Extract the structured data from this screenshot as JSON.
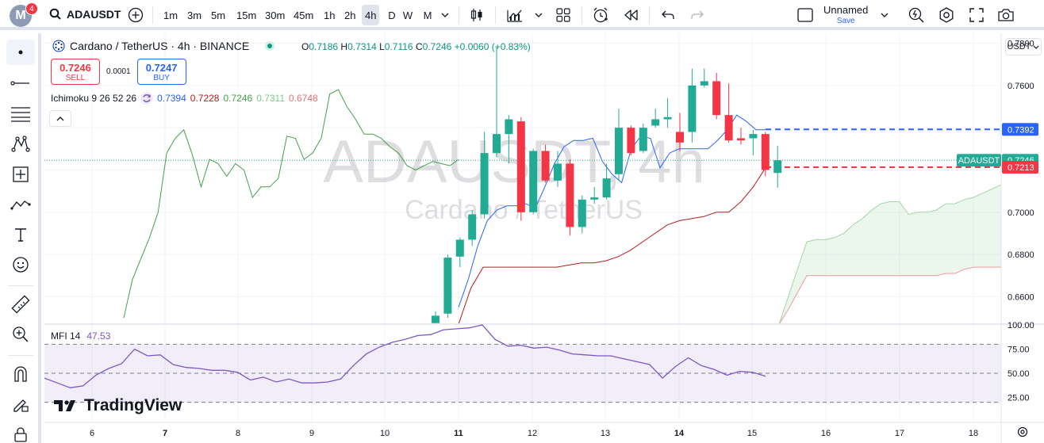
{
  "topbar": {
    "avatar_letter": "M",
    "notification_count": "4",
    "symbol": "ADAUSDT",
    "timeframes": [
      "1m",
      "3m",
      "5m",
      "15m",
      "30m",
      "45m",
      "1h",
      "2h",
      "4h",
      "D",
      "W",
      "M"
    ],
    "active_timeframe": "4h",
    "layout_name": "Unnamed",
    "save_label": "Save"
  },
  "legend": {
    "title": "Cardano / TetherUS · 4h · BINANCE",
    "open_label": "O",
    "open": "0.7186",
    "high_label": "H",
    "high": "0.7314",
    "low_label": "L",
    "low": "0.7116",
    "close_label": "C",
    "close": "0.7246",
    "change": "+0.0060 (+0.83%)"
  },
  "trade": {
    "sell_price": "0.7246",
    "sell_label": "SELL",
    "spread": "0.0001",
    "buy_price": "0.7247",
    "buy_label": "BUY"
  },
  "ichimoku": {
    "label": "Ichimoku 9 26 52 26",
    "v1": "0.7394",
    "v2": "0.7228",
    "v3": "0.7246",
    "v4": "0.7311",
    "v5": "0.6748"
  },
  "mfi": {
    "label": "MFI 14",
    "value": "47.53"
  },
  "currency": "USDT",
  "watermark": {
    "symbol": "ADAUSDT, 4h",
    "name": "Cardano / TetherUS"
  },
  "logo_text": "TradingView",
  "colors": {
    "up": "#22ab94",
    "down": "#f23645",
    "conversion": "#2962ff",
    "base": "#b71c1c",
    "lagging": "#43a047",
    "cloud": "#a5d6a7",
    "mfi": "#7e57c2"
  },
  "chart_data": {
    "type": "candlestick",
    "price_axis": {
      "ticks": [
        "0.7800",
        "0.7600",
        "0.7400",
        "0.7200",
        "0.7000",
        "0.6800",
        "0.6600"
      ],
      "range": [
        0.6474,
        0.7847
      ]
    },
    "price_labels": [
      {
        "text": "0.7392",
        "value": 0.7392,
        "color": "#2962ff"
      },
      {
        "text": "0.7246",
        "value": 0.7246,
        "color": "#22ab94",
        "tag": "ADAUSDT"
      },
      {
        "text": "0.7213",
        "value": 0.7213,
        "color": "#f23645"
      }
    ],
    "x_axis": {
      "labels": [
        "6",
        "7",
        "8",
        "9",
        "10",
        "11",
        "12",
        "13",
        "14",
        "15",
        "16",
        "17",
        "18"
      ],
      "bold": [
        "7",
        "11",
        "14"
      ]
    },
    "mfi_axis": {
      "ticks": [
        "100.00",
        "75.00",
        "50.00",
        "25.00"
      ],
      "bands": [
        80,
        50,
        20
      ]
    },
    "candles": [
      {
        "o": 0.6475,
        "h": 0.653,
        "l": 0.647,
        "c": 0.651
      },
      {
        "o": 0.652,
        "h": 0.68,
        "l": 0.65,
        "c": 0.6785
      },
      {
        "o": 0.679,
        "h": 0.688,
        "l": 0.674,
        "c": 0.687
      },
      {
        "o": 0.687,
        "h": 0.701,
        "l": 0.684,
        "c": 0.699
      },
      {
        "o": 0.699,
        "h": 0.738,
        "l": 0.697,
        "c": 0.728
      },
      {
        "o": 0.728,
        "h": 0.778,
        "l": 0.726,
        "c": 0.737
      },
      {
        "o": 0.737,
        "h": 0.746,
        "l": 0.723,
        "c": 0.744
      },
      {
        "o": 0.743,
        "h": 0.745,
        "l": 0.696,
        "c": 0.7
      },
      {
        "o": 0.7,
        "h": 0.73,
        "l": 0.699,
        "c": 0.729
      },
      {
        "o": 0.729,
        "h": 0.732,
        "l": 0.714,
        "c": 0.715
      },
      {
        "o": 0.715,
        "h": 0.729,
        "l": 0.712,
        "c": 0.723
      },
      {
        "o": 0.723,
        "h": 0.725,
        "l": 0.689,
        "c": 0.693
      },
      {
        "o": 0.693,
        "h": 0.708,
        "l": 0.69,
        "c": 0.706
      },
      {
        "o": 0.706,
        "h": 0.712,
        "l": 0.704,
        "c": 0.707
      },
      {
        "o": 0.707,
        "h": 0.723,
        "l": 0.706,
        "c": 0.716
      },
      {
        "o": 0.718,
        "h": 0.749,
        "l": 0.715,
        "c": 0.74
      },
      {
        "o": 0.74,
        "h": 0.741,
        "l": 0.727,
        "c": 0.728
      },
      {
        "o": 0.729,
        "h": 0.742,
        "l": 0.728,
        "c": 0.74
      },
      {
        "o": 0.741,
        "h": 0.749,
        "l": 0.74,
        "c": 0.744
      },
      {
        "o": 0.744,
        "h": 0.754,
        "l": 0.74,
        "c": 0.745
      },
      {
        "o": 0.738,
        "h": 0.747,
        "l": 0.729,
        "c": 0.733
      },
      {
        "o": 0.738,
        "h": 0.768,
        "l": 0.733,
        "c": 0.76
      },
      {
        "o": 0.76,
        "h": 0.768,
        "l": 0.759,
        "c": 0.762
      },
      {
        "o": 0.762,
        "h": 0.766,
        "l": 0.744,
        "c": 0.746
      },
      {
        "o": 0.746,
        "h": 0.761,
        "l": 0.733,
        "c": 0.734
      },
      {
        "o": 0.735,
        "h": 0.74,
        "l": 0.732,
        "c": 0.734
      },
      {
        "o": 0.735,
        "h": 0.739,
        "l": 0.727,
        "c": 0.737
      },
      {
        "o": 0.737,
        "h": 0.738,
        "l": 0.717,
        "c": 0.72
      },
      {
        "o": 0.7186,
        "h": 0.7314,
        "l": 0.7116,
        "c": 0.7246
      }
    ],
    "conversion_line": [
      0.655,
      0.668,
      0.684,
      0.696,
      0.701,
      0.703,
      0.703,
      0.704,
      0.702,
      0.712,
      0.723,
      0.731,
      0.734,
      0.734,
      0.735,
      0.724,
      0.718,
      0.714,
      0.73,
      0.736,
      0.735,
      0.721,
      0.728,
      0.73,
      0.73,
      0.73,
      0.73,
      0.734,
      0.739,
      0.746,
      0.743,
      0.739,
      0.739
    ],
    "base_line": [
      0.647,
      0.664,
      0.674,
      0.674,
      0.674,
      0.674,
      0.674,
      0.674,
      0.674,
      0.675,
      0.676,
      0.676,
      0.677,
      0.679,
      0.682,
      0.686,
      0.69,
      0.694,
      0.696,
      0.697,
      0.698,
      0.7,
      0.7,
      0.705,
      0.712,
      0.721
    ],
    "lagging_span": [
      0.65,
      0.668,
      0.678,
      0.688,
      0.7,
      0.728,
      0.735,
      0.739,
      0.727,
      0.712,
      0.725,
      0.723,
      0.717,
      0.723,
      0.72,
      0.707,
      0.712,
      0.712,
      0.716,
      0.736,
      0.735,
      0.725,
      0.728,
      0.735,
      0.756,
      0.758,
      0.75,
      0.744,
      0.737,
      0.737,
      0.735,
      0.731,
      0.728,
      0.722,
      0.72,
      0.722,
      0.724,
      0.723,
      0.722,
      0.725
    ],
    "cloud_top": [
      0.647,
      0.66,
      0.673,
      0.686,
      0.687,
      0.687,
      0.688,
      0.69,
      0.694,
      0.697,
      0.701,
      0.704,
      0.705,
      0.705,
      0.699,
      0.7,
      0.7,
      0.701,
      0.704,
      0.704,
      0.706,
      0.707,
      0.709,
      0.711,
      0.713
    ],
    "cloud_bottom": [
      0.647,
      0.654,
      0.662,
      0.67,
      0.67,
      0.67,
      0.67,
      0.67,
      0.67,
      0.67,
      0.67,
      0.67,
      0.67,
      0.67,
      0.67,
      0.67,
      0.67,
      0.67,
      0.671,
      0.671,
      0.673,
      0.674,
      0.674,
      0.674,
      0.674
    ],
    "mfi_values": [
      45,
      40,
      35,
      37,
      48,
      55,
      60,
      75,
      68,
      69,
      59,
      56,
      55,
      53,
      53,
      51,
      43,
      46,
      41,
      44,
      40,
      40,
      41,
      44,
      58,
      70,
      77,
      82,
      85,
      89,
      90,
      95,
      96,
      97,
      100,
      85,
      78,
      79,
      76,
      77,
      74,
      70,
      69,
      68,
      68,
      65,
      62,
      59,
      45,
      57,
      66,
      58,
      54,
      48,
      52,
      51,
      47
    ],
    "mfi_range": [
      0,
      100
    ]
  }
}
